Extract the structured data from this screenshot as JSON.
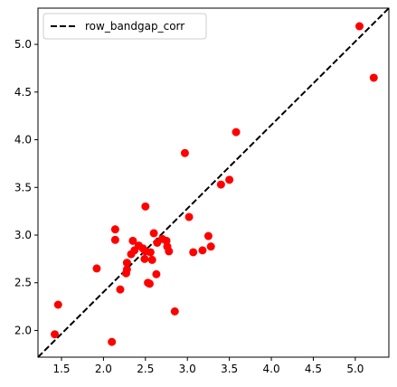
{
  "chart_data": {
    "type": "scatter",
    "xlim": [
      1.22,
      5.4
    ],
    "ylim": [
      1.72,
      5.38
    ],
    "xticks": [
      "1.5",
      "2.0",
      "2.5",
      "3.0",
      "3.5",
      "4.0",
      "4.5",
      "5.0"
    ],
    "yticks": [
      "2.0",
      "2.5",
      "3.0",
      "3.5",
      "4.0",
      "4.5",
      "5.0"
    ],
    "xtick_values": [
      1.5,
      2.0,
      2.5,
      3.0,
      3.5,
      4.0,
      4.5,
      5.0
    ],
    "ytick_values": [
      2.0,
      2.5,
      3.0,
      3.5,
      4.0,
      4.5,
      5.0
    ],
    "grid": false,
    "legend": {
      "position": "top-left",
      "entries": [
        "row_bandgap_corr"
      ]
    },
    "reference_line": {
      "name": "row_bandgap_corr",
      "style": "dashed",
      "color": "#000000",
      "from": [
        1.22,
        1.72
      ],
      "to": [
        5.4,
        5.38
      ]
    },
    "points_color": "#ff0000",
    "points": [
      [
        1.42,
        1.96
      ],
      [
        1.46,
        2.27
      ],
      [
        1.92,
        2.65
      ],
      [
        2.1,
        1.88
      ],
      [
        2.14,
        3.06
      ],
      [
        2.14,
        2.95
      ],
      [
        2.2,
        2.43
      ],
      [
        2.27,
        2.6
      ],
      [
        2.28,
        2.64
      ],
      [
        2.28,
        2.71
      ],
      [
        2.33,
        2.8
      ],
      [
        2.35,
        2.94
      ],
      [
        2.37,
        2.84
      ],
      [
        2.42,
        2.89
      ],
      [
        2.47,
        2.86
      ],
      [
        2.49,
        2.75
      ],
      [
        2.5,
        2.83
      ],
      [
        2.5,
        3.3
      ],
      [
        2.53,
        2.5
      ],
      [
        2.55,
        2.49
      ],
      [
        2.56,
        2.82
      ],
      [
        2.58,
        2.74
      ],
      [
        2.6,
        3.02
      ],
      [
        2.63,
        2.59
      ],
      [
        2.64,
        2.92
      ],
      [
        2.7,
        2.96
      ],
      [
        2.75,
        2.94
      ],
      [
        2.76,
        2.88
      ],
      [
        2.78,
        2.83
      ],
      [
        2.85,
        2.2
      ],
      [
        2.97,
        3.86
      ],
      [
        3.02,
        3.19
      ],
      [
        3.07,
        2.82
      ],
      [
        3.18,
        2.84
      ],
      [
        3.25,
        2.99
      ],
      [
        3.28,
        2.88
      ],
      [
        3.4,
        3.53
      ],
      [
        3.5,
        3.58
      ],
      [
        3.58,
        4.08
      ],
      [
        5.05,
        5.19
      ],
      [
        5.22,
        4.65
      ]
    ]
  }
}
